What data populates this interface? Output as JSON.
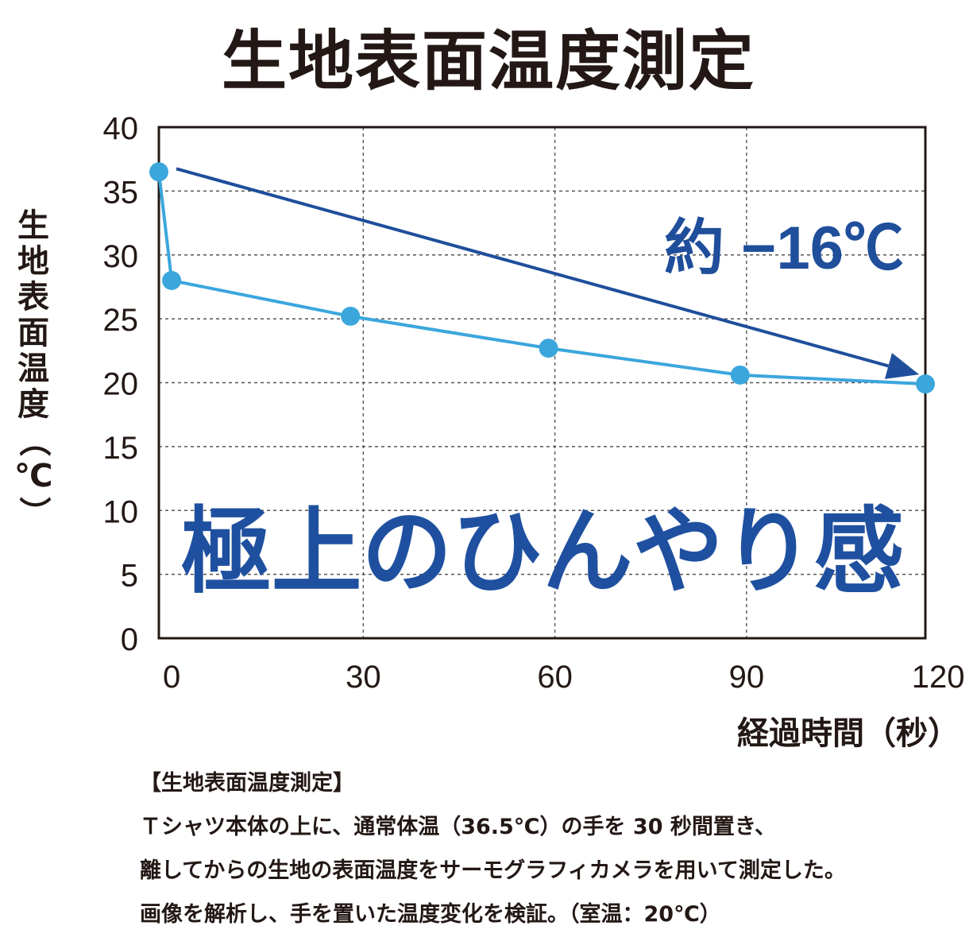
{
  "title": "生地表面温度測定",
  "chart_data": {
    "type": "line",
    "title": "生地表面温度測定",
    "xlabel": "経過時間（秒）",
    "ylabel": "生地表面温度（℃）",
    "x_ticks": [
      "0",
      "30",
      "60",
      "90",
      "120"
    ],
    "y_ticks": [
      "0",
      "5",
      "10",
      "15",
      "20",
      "25",
      "30",
      "35",
      "40"
    ],
    "xlim": [
      -2,
      118
    ],
    "ylim": [
      0,
      40
    ],
    "grid": true,
    "series": [
      {
        "points": [
          {
            "x": -2,
            "y": 36.5
          },
          {
            "x": 0,
            "y": 28
          },
          {
            "x": 28,
            "y": 25.2
          },
          {
            "x": 59,
            "y": 22.7
          },
          {
            "x": 89,
            "y": 20.6
          },
          {
            "x": 118,
            "y": 19.9
          }
        ]
      }
    ],
    "annotations": {
      "arrow_label": "約 −16℃",
      "headline": "極上のひんやり感"
    },
    "colors": {
      "series": "#3ba6dc",
      "arrow": "#1f4e9b",
      "headline": "#1f50a0",
      "frame": "#231815",
      "grid": "#555555"
    }
  },
  "notes": {
    "heading": "【生地表面温度測定】",
    "lines": [
      "Ｔシャツ本体の上に、通常体温（36.5℃）の手を 30 秒間置き、",
      "離してからの生地の表面温度をサーモグラフィカメラを用いて測定した。",
      "画像を解析し、手を置いた温度変化を検証。（室温：20℃）"
    ]
  }
}
